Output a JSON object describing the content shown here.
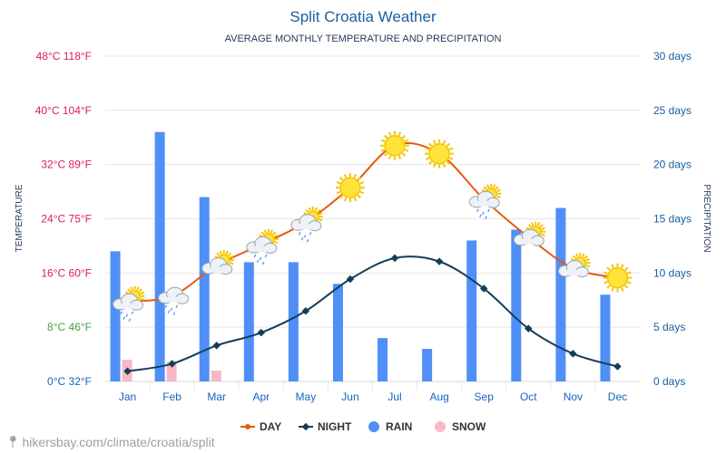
{
  "colors": {
    "title": "#1a5fa0",
    "subtitle": "#2a3a5a",
    "day": "#e8590c",
    "night": "#143d59",
    "rain": "#4f8ff7",
    "snow": "#f8b8c6",
    "axis_blue": "#1565c0",
    "axis_pink": "#d81b60",
    "axis_green": "#43a047",
    "right_axis": "#1a5fa0",
    "grid": "#e6e6e6"
  },
  "chart_data": {
    "type": "bar",
    "title": "Split Croatia Weather",
    "subtitle": "AVERAGE MONTHLY TEMPERATURE AND PRECIPITATION",
    "ylabel_left": "TEMPERATURE",
    "ylabel_right": "PRECIPITATION",
    "categories": [
      "Jan",
      "Feb",
      "Mar",
      "Apr",
      "May",
      "Jun",
      "Jul",
      "Aug",
      "Sep",
      "Oct",
      "Nov",
      "Dec"
    ],
    "temp_ylim": [
      0,
      48
    ],
    "precip_ylim": [
      0,
      30
    ],
    "left_ticks": [
      {
        "value": 0,
        "label": "0°C 32°F",
        "color": "blue"
      },
      {
        "value": 8,
        "label": "8°C 46°F",
        "color": "green"
      },
      {
        "value": 16,
        "label": "16°C 60°F",
        "color": "pink"
      },
      {
        "value": 24,
        "label": "24°C 75°F",
        "color": "pink"
      },
      {
        "value": 32,
        "label": "32°C 89°F",
        "color": "pink"
      },
      {
        "value": 40,
        "label": "40°C 104°F",
        "color": "pink"
      },
      {
        "value": 48,
        "label": "48°C 118°F",
        "color": "pink"
      }
    ],
    "right_ticks": [
      {
        "value": 0,
        "label": "0 days"
      },
      {
        "value": 5,
        "label": "5 days"
      },
      {
        "value": 10,
        "label": "10 days"
      },
      {
        "value": 15,
        "label": "15 days"
      },
      {
        "value": 20,
        "label": "20 days"
      },
      {
        "value": 25,
        "label": "25 days"
      },
      {
        "value": 30,
        "label": "30 days"
      }
    ],
    "series": [
      {
        "name": "DAY",
        "kind": "line",
        "values": [
          11.8,
          12.6,
          17.1,
          20.2,
          23.5,
          28.6,
          34.8,
          33.6,
          26.9,
          21.3,
          16.7,
          15.3
        ]
      },
      {
        "name": "NIGHT",
        "kind": "line",
        "values": [
          1.5,
          2.6,
          5.3,
          7.2,
          10.4,
          15.1,
          18.2,
          17.7,
          13.7,
          7.8,
          4.1,
          2.2
        ]
      },
      {
        "name": "RAIN",
        "kind": "bar",
        "values": [
          12,
          23,
          17,
          11,
          11,
          9,
          4,
          3,
          13,
          14,
          16,
          8
        ]
      },
      {
        "name": "SNOW",
        "kind": "bar",
        "values": [
          2,
          1.8,
          1,
          0,
          0,
          0,
          0,
          0,
          0,
          0,
          0,
          0
        ]
      }
    ],
    "weather_icons": [
      "partly-cloudy-rain-icon",
      "cloud-rain-icon",
      "partly-cloudy-icon",
      "partly-cloudy-rain-icon",
      "partly-cloudy-rain-icon",
      "sun-icon",
      "sun-icon",
      "sun-icon",
      "partly-cloudy-rain-icon",
      "partly-cloudy-icon",
      "partly-cloudy-icon",
      "sun-icon"
    ],
    "legend": [
      "DAY",
      "NIGHT",
      "RAIN",
      "SNOW"
    ],
    "legend_position": "bottom-center",
    "grid": true
  },
  "footer": {
    "text": "hikersbay.com/climate/croatia/split"
  }
}
